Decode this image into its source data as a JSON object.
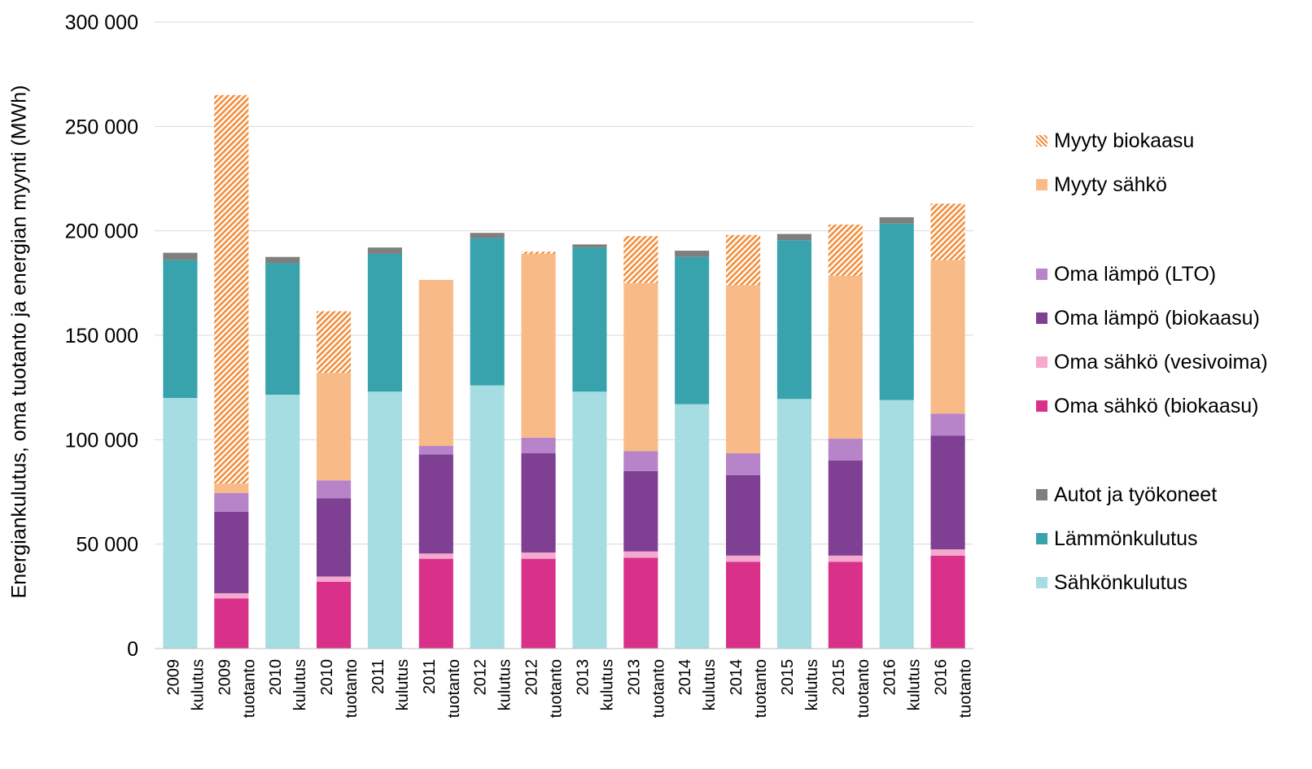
{
  "chart_data": {
    "type": "bar",
    "stacked": true,
    "ylabel": "Energiankulutus, oma tuotanto ja energian myynti (MWh)",
    "ylim": [
      0,
      300000
    ],
    "yticks": [
      0,
      50000,
      100000,
      150000,
      200000,
      250000,
      300000
    ],
    "ytick_labels": [
      "0",
      "50 000",
      "100 000",
      "150 000",
      "200 000",
      "250 000",
      "300 000"
    ],
    "gridlines": true,
    "legend_position": "right",
    "categories": [
      [
        "2009",
        "kulutus"
      ],
      [
        "2009",
        "tuotanto"
      ],
      [
        "2010",
        "kulutus"
      ],
      [
        "2010",
        "tuotanto"
      ],
      [
        "2011",
        "kulutus"
      ],
      [
        "2011",
        "tuotanto"
      ],
      [
        "2012",
        "kulutus"
      ],
      [
        "2012",
        "tuotanto"
      ],
      [
        "2013",
        "kulutus"
      ],
      [
        "2013",
        "tuotanto"
      ],
      [
        "2014",
        "kulutus"
      ],
      [
        "2014",
        "tuotanto"
      ],
      [
        "2015",
        "kulutus"
      ],
      [
        "2015",
        "tuotanto"
      ],
      [
        "2016",
        "kulutus"
      ],
      [
        "2016",
        "tuotanto"
      ]
    ],
    "series": [
      {
        "name": "Sähkönkulutus",
        "color": "#a6dde3",
        "values": [
          120000,
          0,
          121500,
          0,
          123000,
          0,
          126000,
          0,
          123000,
          0,
          117000,
          0,
          119500,
          0,
          119000,
          0
        ]
      },
      {
        "name": "Lämmönkulutus",
        "color": "#38a3ad",
        "values": [
          66000,
          0,
          63000,
          0,
          66000,
          0,
          70500,
          0,
          69000,
          0,
          70500,
          0,
          76000,
          0,
          84500,
          0
        ]
      },
      {
        "name": "Autot ja työkoneet",
        "color": "#7f7f7f",
        "values": [
          3500,
          0,
          3000,
          0,
          3000,
          0,
          2500,
          0,
          1500,
          0,
          3000,
          0,
          3000,
          0,
          3000,
          0
        ]
      },
      {
        "name": "Oma sähkö (biokaasu)",
        "color": "#d9318a",
        "values": [
          0,
          24000,
          0,
          32000,
          0,
          43000,
          0,
          43000,
          0,
          43500,
          0,
          41500,
          0,
          41500,
          0,
          44500
        ]
      },
      {
        "name": "Oma sähkö (vesivoima)",
        "color": "#f4a9cf",
        "values": [
          0,
          2500,
          0,
          2500,
          0,
          2500,
          0,
          3000,
          0,
          3000,
          0,
          3000,
          0,
          3000,
          0,
          3000
        ]
      },
      {
        "name": "Oma lämpö (biokaasu)",
        "color": "#7f3f93",
        "values": [
          0,
          39000,
          0,
          37500,
          0,
          47500,
          0,
          47500,
          0,
          38500,
          0,
          38500,
          0,
          45500,
          0,
          54500
        ]
      },
      {
        "name": "Oma lämpö (LTO)",
        "color": "#b783c9",
        "values": [
          0,
          9000,
          0,
          8500,
          0,
          4000,
          0,
          7500,
          0,
          9500,
          0,
          10500,
          0,
          10500,
          0,
          10500
        ]
      },
      {
        "name": "Myyty sähkö",
        "color": "#f8bb87",
        "values": [
          0,
          4500,
          0,
          51500,
          0,
          79500,
          0,
          88000,
          0,
          80500,
          0,
          80500,
          0,
          78000,
          0,
          73500
        ]
      },
      {
        "name": "Myyty biokaasu",
        "color": "#f28e3c",
        "pattern": "hatched",
        "values": [
          0,
          186000,
          0,
          29500,
          0,
          0,
          0,
          1000,
          0,
          22500,
          0,
          24000,
          0,
          24500,
          0,
          27000
        ]
      }
    ]
  },
  "legend": {
    "groups": [
      [
        "Myyty biokaasu",
        "Myyty sähkö"
      ],
      [
        "Oma lämpö (LTO)",
        "Oma lämpö (biokaasu)",
        "Oma sähkö (vesivoima)",
        "Oma sähkö (biokaasu)"
      ],
      [
        "Autot ja työkoneet",
        "Lämmönkulutus",
        "Sähkönkulutus"
      ]
    ]
  }
}
